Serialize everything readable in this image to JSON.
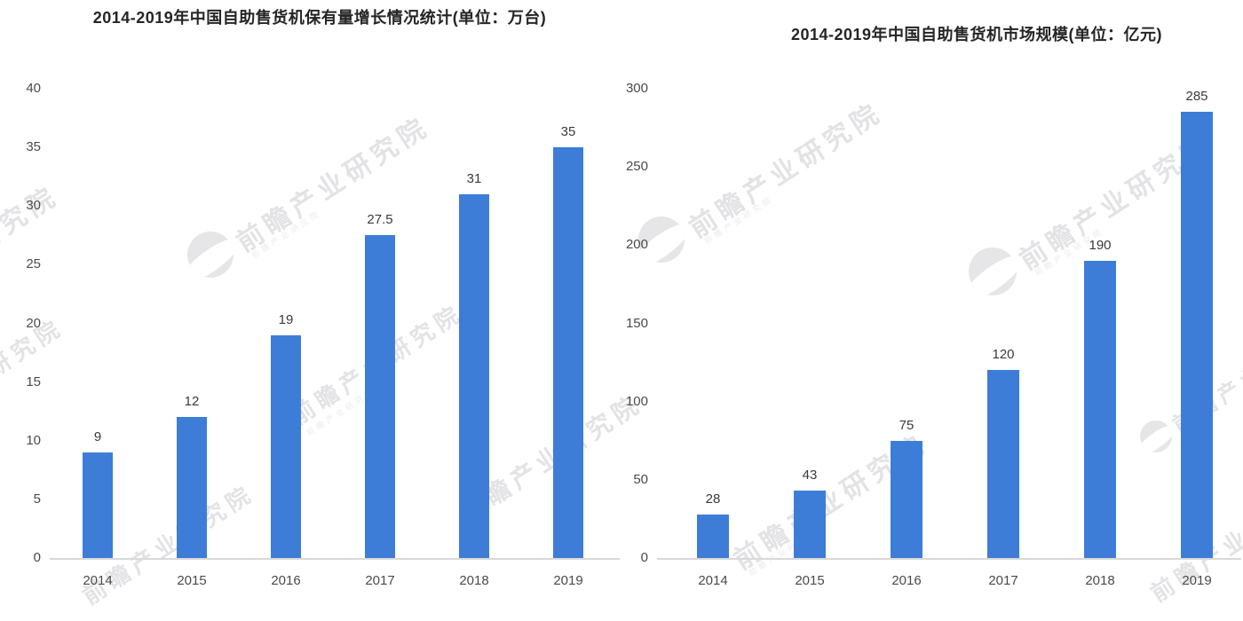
{
  "watermark": {
    "text": "前瞻产业研究院",
    "color": "#e3e2e5"
  },
  "chart_data": [
    {
      "type": "bar",
      "title": "2014-2019年中国自助售货机保有量增长情况统计(单位：万台)",
      "categories": [
        "2014",
        "2015",
        "2016",
        "2017",
        "2018",
        "2019"
      ],
      "values": [
        9,
        12,
        19,
        27.5,
        31,
        35
      ],
      "xlabel": "",
      "ylabel": "",
      "ylim": [
        0,
        40
      ],
      "ytick_step": 5,
      "yticks": [
        0,
        5,
        10,
        15,
        20,
        25,
        30,
        35,
        40
      ],
      "grid": false,
      "legend": "none",
      "bar_color": "#3d7dd8",
      "value_label_color": "#3a3a3a",
      "axis_tick_color": "#4a4a4a",
      "baseline_color": "#d9d9d9"
    },
    {
      "type": "bar",
      "title": "2014-2019年中国自助售货机市场规模(单位：亿元)",
      "categories": [
        "2014",
        "2015",
        "2016",
        "2017",
        "2018",
        "2019"
      ],
      "values": [
        28,
        43,
        75,
        120,
        190,
        285
      ],
      "xlabel": "",
      "ylabel": "",
      "ylim": [
        0,
        300
      ],
      "ytick_step": 50,
      "yticks": [
        0,
        50,
        100,
        150,
        200,
        250,
        300
      ],
      "grid": false,
      "legend": "none",
      "bar_color": "#3d7dd8",
      "value_label_color": "#3a3a3a",
      "axis_tick_color": "#4a4a4a",
      "baseline_color": "#d9d9d9"
    }
  ]
}
